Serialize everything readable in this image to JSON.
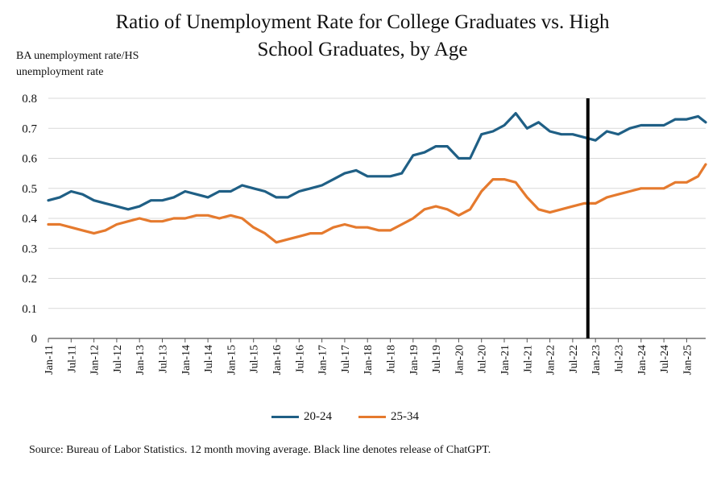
{
  "chart_data": {
    "type": "line",
    "title_lines": [
      "Ratio of Unemployment Rate for College Graduates vs. High",
      "School Graduates, by Age"
    ],
    "ylabel_lines": [
      "BA unemployment rate/HS",
      "unemployment rate"
    ],
    "ylim": [
      0,
      0.8
    ],
    "yticks": [
      "0.8",
      "0.7",
      "0.6",
      "0.5",
      "0.4",
      "0.3",
      "0.2",
      "0.1",
      "0"
    ],
    "xticks": [
      "Jan-11",
      "Jul-11",
      "Jan-12",
      "Jul-12",
      "Jan-13",
      "Jul-13",
      "Jan-14",
      "Jul-14",
      "Jan-15",
      "Jul-15",
      "Jan-16",
      "Jul-16",
      "Jan-17",
      "Jul-17",
      "Jan-18",
      "Jul-18",
      "Jan-19",
      "Jul-19",
      "Jan-20",
      "Jul-20",
      "Jan-21",
      "Jul-21",
      "Jan-22",
      "Jul-22",
      "Jan-23",
      "Jul-23",
      "Jan-24",
      "Jul-24",
      "Jan-25"
    ],
    "x_start": "Jan-11",
    "x_end": "Jun-25",
    "grid": true,
    "legend_position": "bottom",
    "vline": {
      "x": "Nov-22",
      "color": "#000000"
    },
    "series": [
      {
        "name": "20-24",
        "color": "#1f5f85",
        "points": [
          [
            "Jan-11",
            0.46
          ],
          [
            "Apr-11",
            0.47
          ],
          [
            "Jul-11",
            0.49
          ],
          [
            "Oct-11",
            0.48
          ],
          [
            "Jan-12",
            0.46
          ],
          [
            "Apr-12",
            0.45
          ],
          [
            "Jul-12",
            0.44
          ],
          [
            "Oct-12",
            0.43
          ],
          [
            "Jan-13",
            0.44
          ],
          [
            "Apr-13",
            0.46
          ],
          [
            "Jul-13",
            0.46
          ],
          [
            "Oct-13",
            0.47
          ],
          [
            "Jan-14",
            0.49
          ],
          [
            "Apr-14",
            0.48
          ],
          [
            "Jul-14",
            0.47
          ],
          [
            "Oct-14",
            0.49
          ],
          [
            "Jan-15",
            0.49
          ],
          [
            "Apr-15",
            0.51
          ],
          [
            "Jul-15",
            0.5
          ],
          [
            "Oct-15",
            0.49
          ],
          [
            "Jan-16",
            0.47
          ],
          [
            "Apr-16",
            0.47
          ],
          [
            "Jul-16",
            0.49
          ],
          [
            "Oct-16",
            0.5
          ],
          [
            "Jan-17",
            0.51
          ],
          [
            "Apr-17",
            0.53
          ],
          [
            "Jul-17",
            0.55
          ],
          [
            "Oct-17",
            0.56
          ],
          [
            "Jan-18",
            0.54
          ],
          [
            "Apr-18",
            0.54
          ],
          [
            "Jul-18",
            0.54
          ],
          [
            "Oct-18",
            0.55
          ],
          [
            "Jan-19",
            0.61
          ],
          [
            "Apr-19",
            0.62
          ],
          [
            "Jul-19",
            0.64
          ],
          [
            "Oct-19",
            0.64
          ],
          [
            "Jan-20",
            0.6
          ],
          [
            "Apr-20",
            0.6
          ],
          [
            "Jul-20",
            0.68
          ],
          [
            "Oct-20",
            0.69
          ],
          [
            "Jan-21",
            0.71
          ],
          [
            "Apr-21",
            0.75
          ],
          [
            "Jul-21",
            0.7
          ],
          [
            "Oct-21",
            0.72
          ],
          [
            "Jan-22",
            0.69
          ],
          [
            "Apr-22",
            0.68
          ],
          [
            "Jul-22",
            0.68
          ],
          [
            "Oct-22",
            0.67
          ],
          [
            "Jan-23",
            0.66
          ],
          [
            "Apr-23",
            0.69
          ],
          [
            "Jul-23",
            0.68
          ],
          [
            "Oct-23",
            0.7
          ],
          [
            "Jan-24",
            0.71
          ],
          [
            "Apr-24",
            0.71
          ],
          [
            "Jul-24",
            0.71
          ],
          [
            "Oct-24",
            0.73
          ],
          [
            "Jan-25",
            0.73
          ],
          [
            "Apr-25",
            0.74
          ],
          [
            "Jun-25",
            0.72
          ]
        ]
      },
      {
        "name": "25-34",
        "color": "#e57a2e",
        "points": [
          [
            "Jan-11",
            0.38
          ],
          [
            "Apr-11",
            0.38
          ],
          [
            "Jul-11",
            0.37
          ],
          [
            "Oct-11",
            0.36
          ],
          [
            "Jan-12",
            0.35
          ],
          [
            "Apr-12",
            0.36
          ],
          [
            "Jul-12",
            0.38
          ],
          [
            "Oct-12",
            0.39
          ],
          [
            "Jan-13",
            0.4
          ],
          [
            "Apr-13",
            0.39
          ],
          [
            "Jul-13",
            0.39
          ],
          [
            "Oct-13",
            0.4
          ],
          [
            "Jan-14",
            0.4
          ],
          [
            "Apr-14",
            0.41
          ],
          [
            "Jul-14",
            0.41
          ],
          [
            "Oct-14",
            0.4
          ],
          [
            "Jan-15",
            0.41
          ],
          [
            "Apr-15",
            0.4
          ],
          [
            "Jul-15",
            0.37
          ],
          [
            "Oct-15",
            0.35
          ],
          [
            "Jan-16",
            0.32
          ],
          [
            "Apr-16",
            0.33
          ],
          [
            "Jul-16",
            0.34
          ],
          [
            "Oct-16",
            0.35
          ],
          [
            "Jan-17",
            0.35
          ],
          [
            "Apr-17",
            0.37
          ],
          [
            "Jul-17",
            0.38
          ],
          [
            "Oct-17",
            0.37
          ],
          [
            "Jan-18",
            0.37
          ],
          [
            "Apr-18",
            0.36
          ],
          [
            "Jul-18",
            0.36
          ],
          [
            "Oct-18",
            0.38
          ],
          [
            "Jan-19",
            0.4
          ],
          [
            "Apr-19",
            0.43
          ],
          [
            "Jul-19",
            0.44
          ],
          [
            "Oct-19",
            0.43
          ],
          [
            "Jan-20",
            0.41
          ],
          [
            "Apr-20",
            0.43
          ],
          [
            "Jul-20",
            0.49
          ],
          [
            "Oct-20",
            0.53
          ],
          [
            "Jan-21",
            0.53
          ],
          [
            "Apr-21",
            0.52
          ],
          [
            "Jul-21",
            0.47
          ],
          [
            "Oct-21",
            0.43
          ],
          [
            "Jan-22",
            0.42
          ],
          [
            "Apr-22",
            0.43
          ],
          [
            "Jul-22",
            0.44
          ],
          [
            "Oct-22",
            0.45
          ],
          [
            "Jan-23",
            0.45
          ],
          [
            "Apr-23",
            0.47
          ],
          [
            "Jul-23",
            0.48
          ],
          [
            "Oct-23",
            0.49
          ],
          [
            "Jan-24",
            0.5
          ],
          [
            "Apr-24",
            0.5
          ],
          [
            "Jul-24",
            0.5
          ],
          [
            "Oct-24",
            0.52
          ],
          [
            "Jan-25",
            0.52
          ],
          [
            "Apr-25",
            0.54
          ],
          [
            "Jun-25",
            0.58
          ]
        ]
      }
    ]
  },
  "source_text": "Source: Bureau of Labor Statistics.  12 month moving average. Black line denotes release of ChatGPT."
}
